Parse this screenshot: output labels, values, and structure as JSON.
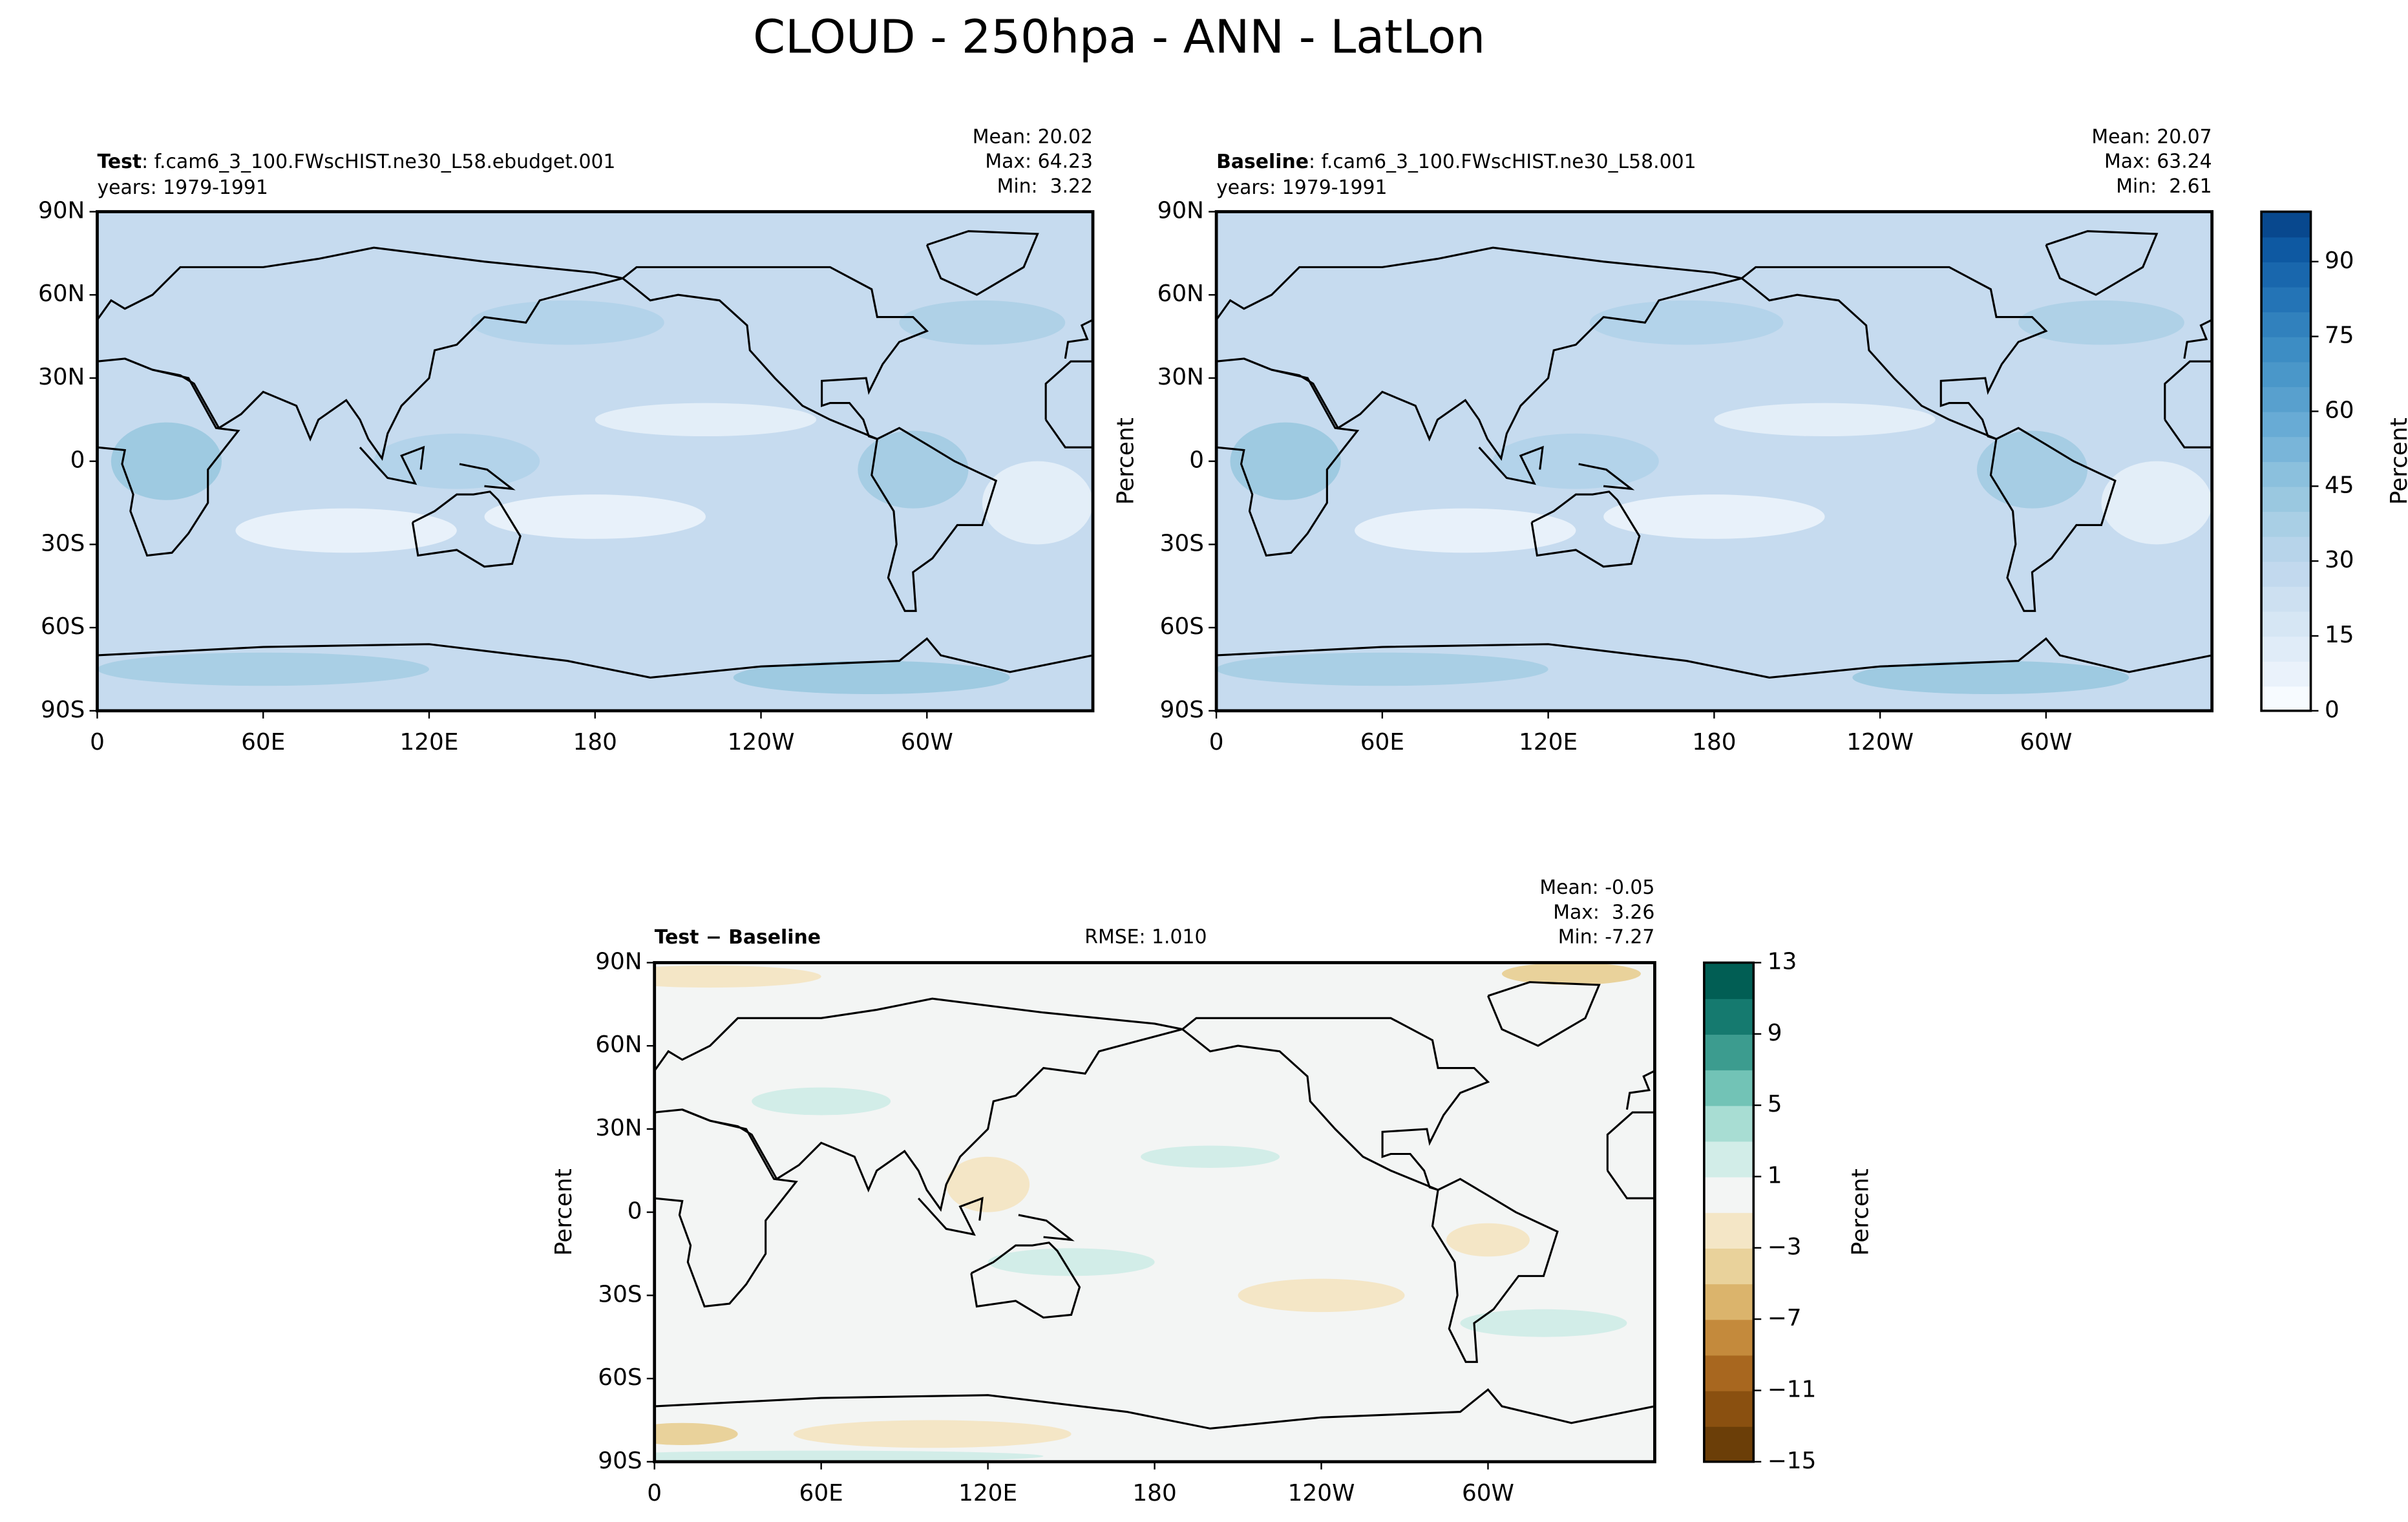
{
  "title": "CLOUD - 250hpa - ANN - LatLon",
  "lon_ticks": [
    "0",
    "60E",
    "120E",
    "180",
    "120W",
    "60W"
  ],
  "lat_ticks": [
    "90N",
    "60N",
    "30N",
    "0",
    "30S",
    "60S",
    "90S"
  ],
  "panels": [
    {
      "name": "Test",
      "label": ": f.cam6_3_100.FWscHIST.ne30_L58.ebudget.001",
      "years": "years: 1979-1991",
      "stats": [
        "Mean: 20.02",
        "Max: 64.23",
        "Min:  3.22"
      ]
    },
    {
      "name": "Baseline",
      "label": ": f.cam6_3_100.FWscHIST.ne30_L58.001",
      "years": "years: 1979-1991",
      "stats": [
        "Mean: 20.07",
        "Max: 63.24",
        "Min:  2.61"
      ],
      "ylabel": "Percent"
    },
    {
      "name": "Test − Baseline",
      "rmse": "RMSE: 1.010",
      "stats": [
        "Mean: -0.05",
        "Max:  3.26",
        "Min: -7.27"
      ],
      "ylabel": "Percent"
    }
  ],
  "colorbars": [
    {
      "label": "Percent",
      "lim": [
        0,
        100
      ],
      "ticks": [
        0,
        15,
        30,
        45,
        60,
        75,
        90
      ],
      "colors": [
        "#f7fbff",
        "#eaf2fb",
        "#e0ecf8",
        "#d6e6f4",
        "#cde0f1",
        "#c2d9ee",
        "#b7d4ea",
        "#a9cfe5",
        "#9ac8e0",
        "#8bc0dd",
        "#79b5d9",
        "#68abd5",
        "#58a0ce",
        "#4a97c9",
        "#3d8dc4",
        "#3181bd",
        "#2474b6",
        "#1967ad",
        "#0e59a2",
        "#08488e"
      ]
    },
    {
      "label": "Percent",
      "lim": [
        -15,
        13
      ],
      "ticks": [
        {
          "value": -15,
          "label": "−15"
        },
        {
          "value": -11,
          "label": "−11"
        },
        {
          "value": -7,
          "label": "−7"
        },
        {
          "value": -3,
          "label": "−3"
        },
        1,
        5,
        9,
        13
      ],
      "colors": [
        "#6b3e08",
        "#8a5010",
        "#a8671f",
        "#c48a3c",
        "#dbb46c",
        "#e9d29b",
        "#f4e6c6",
        "#f3f5f4",
        "#d2ede8",
        "#a8ddd3",
        "#72c3b6",
        "#3c9c8f",
        "#157a6f",
        "#015e54"
      ]
    }
  ]
}
